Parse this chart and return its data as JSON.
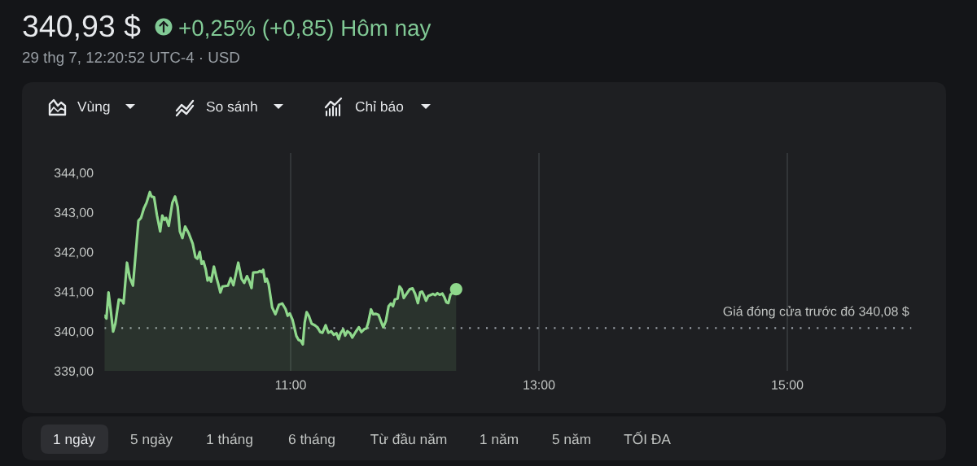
{
  "chart_data": {
    "type": "area",
    "title": "340,93 $",
    "subtitle": "+0,25% (+0,85) Hôm nay",
    "annotations": [
      "29 thg 7, 12:20:52 UTC-4 · USD",
      "Vùng",
      "So sánh",
      "Chỉ báo",
      "1 ngày",
      "5 ngày",
      "1 tháng",
      "6 tháng",
      "Từ đầu năm",
      "1 năm",
      "5 năm",
      "TỐI ĐA"
    ],
    "x": [
      9.5,
      9.516,
      9.533,
      9.551,
      9.57,
      9.588,
      9.616,
      9.643,
      9.654,
      9.682,
      9.704,
      9.73,
      9.774,
      9.795,
      9.818,
      9.839,
      9.866,
      9.879,
      9.9,
      9.923,
      9.949,
      9.966,
      9.982,
      9.997,
      10.018,
      10.047,
      10.069,
      10.09,
      10.108,
      10.128,
      10.15,
      10.178,
      10.211,
      10.233,
      10.25,
      10.268,
      10.283,
      10.298,
      10.316,
      10.331,
      10.346,
      10.359,
      10.382,
      10.403,
      10.418,
      10.434,
      10.451,
      10.495,
      10.517,
      10.539,
      10.578,
      10.605,
      10.626,
      10.648,
      10.666,
      10.685,
      10.698,
      10.736,
      10.753,
      10.766,
      10.779,
      10.795,
      10.808,
      10.823,
      10.851,
      10.877,
      10.906,
      10.932,
      10.959,
      10.976,
      10.993,
      11.015,
      11.046,
      11.064,
      11.081,
      11.098,
      11.113,
      11.129,
      11.146,
      11.169,
      11.195,
      11.216,
      11.238,
      11.256,
      11.282,
      11.304,
      11.326,
      11.348,
      11.369,
      11.387,
      11.402,
      11.424,
      11.439,
      11.457,
      11.479,
      11.496,
      11.523,
      11.549,
      11.57,
      11.592,
      11.61,
      11.625,
      11.647,
      11.664,
      11.687,
      11.708,
      11.726,
      11.746,
      11.767,
      11.789,
      11.807,
      11.824,
      11.839,
      11.861,
      11.877,
      11.894,
      11.911,
      11.933,
      11.959,
      11.982,
      12.003,
      12.025,
      12.043,
      12.058,
      12.073,
      12.09,
      12.108,
      12.123,
      12.146,
      12.163,
      12.182,
      12.2,
      12.222,
      12.239,
      12.254,
      12.27,
      12.287,
      12.333
    ],
    "series": [
      {
        "color": "#8fd88c",
        "values": [
          340.39,
          340.32,
          340.98,
          340.53,
          339.99,
          340.19,
          340.8,
          340.77,
          340.7,
          341.73,
          341.35,
          341.15,
          342.79,
          342.86,
          343.1,
          343.24,
          343.51,
          343.4,
          343.38,
          342.93,
          342.52,
          342.92,
          342.81,
          342.86,
          342.66,
          343.24,
          343.4,
          343.14,
          342.52,
          342.35,
          342.64,
          342.48,
          342.21,
          341.87,
          341.83,
          342.0,
          341.7,
          341.76,
          341.56,
          341.28,
          341.35,
          341.25,
          341.63,
          341.35,
          341.18,
          340.98,
          341.13,
          341.15,
          341.34,
          341.16,
          341.73,
          341.32,
          341.22,
          341.39,
          341.27,
          341.09,
          341.48,
          341.49,
          341.52,
          341.49,
          341.55,
          341.25,
          341.32,
          341.18,
          340.6,
          340.43,
          340.67,
          340.7,
          340.56,
          340.39,
          340.45,
          340.29,
          339.88,
          339.78,
          339.76,
          339.67,
          340.22,
          340.48,
          340.39,
          340.19,
          340.15,
          340.1,
          339.98,
          339.96,
          340.15,
          339.96,
          340.0,
          339.91,
          339.95,
          339.8,
          339.95,
          340.05,
          339.89,
          340.0,
          339.95,
          339.84,
          339.98,
          340.1,
          339.98,
          340.05,
          340.07,
          340.22,
          340.55,
          340.43,
          340.44,
          340.41,
          340.26,
          340.1,
          340.26,
          340.63,
          340.7,
          340.63,
          340.8,
          340.82,
          341.13,
          341.06,
          340.84,
          340.94,
          341.06,
          341.08,
          340.94,
          340.71,
          340.98,
          341.0,
          340.91,
          340.77,
          340.89,
          340.91,
          340.94,
          340.91,
          340.96,
          340.92,
          340.95,
          340.85,
          340.73,
          340.71,
          340.92,
          341.06
        ]
      },
      {
        "type": "scatter",
        "color": "#8fd88c",
        "x": [
          12.333
        ],
        "values": [
          341.06
        ]
      }
    ],
    "xlim": [
      9.5,
      16
    ],
    "xticks": [
      {
        "value": 11,
        "label": "11:00"
      },
      {
        "value": 13,
        "label": "13:00"
      },
      {
        "value": 15,
        "label": "15:00"
      }
    ],
    "ylim": [
      339,
      344.5
    ],
    "yticks": [
      {
        "value": 339,
        "label": "339,00"
      },
      {
        "value": 340,
        "label": "340,00"
      },
      {
        "value": 341,
        "label": "341,00"
      },
      {
        "value": 342,
        "label": "342,00"
      },
      {
        "value": 343,
        "label": "343,00"
      },
      {
        "value": 344,
        "label": "344,00"
      }
    ],
    "grid": "x",
    "ref_lines": [
      {
        "axis": "y",
        "value": 340.08,
        "label": "Giá đóng cửa trước đó 340,08 $",
        "color": "#9aa0a6",
        "line_style": "dotted"
      }
    ]
  }
}
